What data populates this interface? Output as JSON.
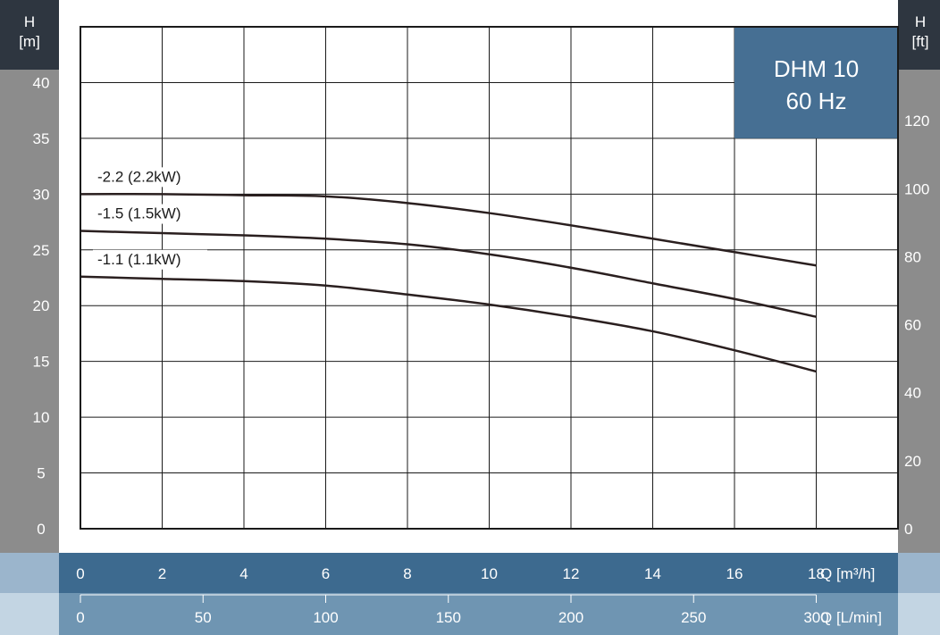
{
  "chart_data": {
    "type": "line",
    "title": "DHM 10",
    "subtitle": "60 Hz",
    "left_axis": {
      "label_top": "H",
      "label_bottom": "[m]",
      "ticks": [
        0,
        5,
        10,
        15,
        20,
        25,
        30,
        35,
        40
      ],
      "ylim": [
        0,
        45
      ]
    },
    "right_axis": {
      "label_top": "H",
      "label_bottom": "[ft]",
      "ticks": [
        0,
        20,
        40,
        60,
        80,
        100,
        120
      ]
    },
    "x_axis_primary": {
      "unit_label": "Q [m³/h]",
      "ticks": [
        0,
        2,
        4,
        6,
        8,
        10,
        12,
        14,
        16,
        18
      ],
      "xlim": [
        0,
        20
      ]
    },
    "x_axis_secondary": {
      "unit_label": "Q [L/min]",
      "ticks": [
        0,
        50,
        100,
        150,
        200,
        250,
        300
      ]
    },
    "grid": true,
    "series": [
      {
        "name": "-2.2 (2.2kW)",
        "x": [
          0,
          2,
          4,
          6,
          8,
          10,
          12,
          14,
          16,
          18
        ],
        "y": [
          30.0,
          30.0,
          29.9,
          29.8,
          29.2,
          28.3,
          27.2,
          26.0,
          24.8,
          23.6
        ]
      },
      {
        "name": "-1.5 (1.5kW)",
        "x": [
          0,
          2,
          4,
          6,
          8,
          10,
          12,
          14,
          16,
          18
        ],
        "y": [
          26.7,
          26.5,
          26.3,
          26.0,
          25.5,
          24.6,
          23.4,
          22.0,
          20.6,
          19.0
        ]
      },
      {
        "name": "-1.1 (1.1kW)",
        "x": [
          0,
          2,
          4,
          6,
          8,
          10,
          12,
          14,
          16,
          18
        ],
        "y": [
          22.6,
          22.4,
          22.2,
          21.8,
          21.0,
          20.1,
          19.0,
          17.7,
          16.0,
          14.1
        ]
      }
    ]
  }
}
